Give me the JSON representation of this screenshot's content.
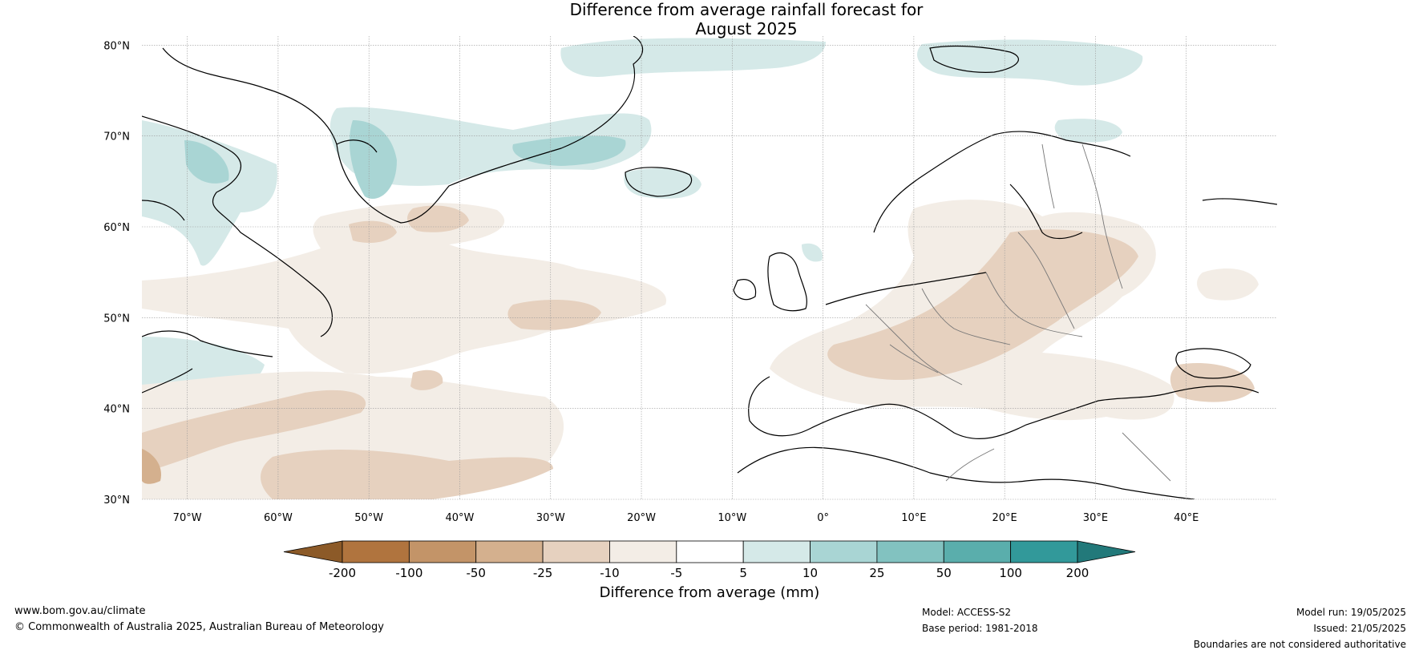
{
  "title_line1": "Difference from average rainfall forecast for",
  "title_line2": "August 2025",
  "lat_labels": [
    "80°N",
    "70°N",
    "60°N",
    "50°N",
    "40°N",
    "30°N"
  ],
  "lat_values": [
    80,
    70,
    60,
    50,
    40,
    30
  ],
  "lon_labels": [
    "70°W",
    "60°W",
    "50°W",
    "40°W",
    "30°W",
    "20°W",
    "10°W",
    "0°",
    "10°E",
    "20°E",
    "30°E",
    "40°E"
  ],
  "lon_values": [
    -70,
    -60,
    -50,
    -40,
    -30,
    -20,
    -10,
    0,
    10,
    20,
    30,
    40
  ],
  "map_extent": {
    "lon": [
      -75,
      50
    ],
    "lat": [
      30,
      81
    ]
  },
  "colorbar": {
    "title": "Difference from average (mm)",
    "ticks": [
      "-200",
      "-100",
      "-50",
      "-25",
      "-10",
      "-5",
      "5",
      "10",
      "25",
      "50",
      "100",
      "200"
    ],
    "colors": [
      "#8c5a28",
      "#b0743e",
      "#c39468",
      "#d4b08e",
      "#e6d1bf",
      "#f3ede6",
      "#ffffff",
      "#d5e9e8",
      "#a9d5d4",
      "#82c2c0",
      "#5aaeac",
      "#32999a",
      "#22797a"
    ]
  },
  "footer": {
    "url": "www.bom.gov.au/climate",
    "copyright": "© Commonwealth of Australia 2025, Australian Bureau of Meteorology",
    "model": "Model: ACCESS-S2",
    "base_period": "Base period: 1981-2018",
    "model_run": "Model run: 19/05/2025",
    "issued": "Issued: 21/05/2025",
    "disclaimer": "Boundaries are not considered authoritative"
  }
}
